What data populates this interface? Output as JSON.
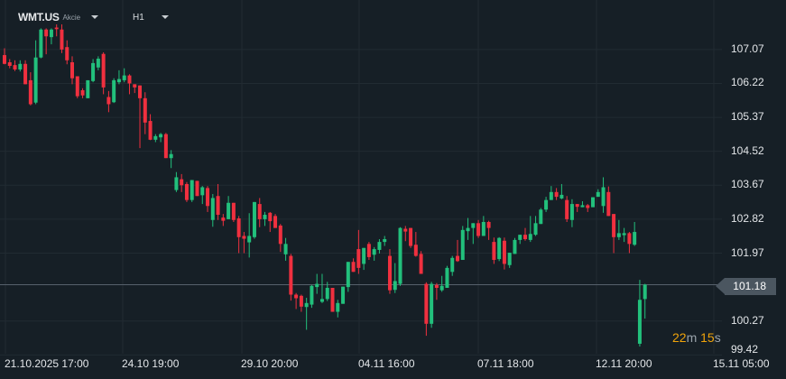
{
  "header": {
    "symbol": "WMT.US",
    "instrument_type": "Akcie",
    "timeframe": "H1"
  },
  "countdown": {
    "minutes": "22",
    "minutes_unit": "m",
    "seconds": "15",
    "seconds_unit": "s"
  },
  "colors": {
    "background": "#161f26",
    "grid": "#212b32",
    "up": "#22c07c",
    "down": "#f0303f",
    "last_price_box": "#4b5660",
    "countdown": "#f0a30a"
  },
  "chart_data": {
    "type": "candlestick",
    "ylim": [
      98.93,
      108.31
    ],
    "grid": true,
    "y_ticks": [
      "107.07",
      "106.22",
      "105.37",
      "104.52",
      "103.67",
      "102.82",
      "101.97",
      "100.27",
      "99.42"
    ],
    "x_tick_labels": [
      "21.10.2025 17:00",
      "24.10 19:00",
      "29.10 20:00",
      "04.11 16:00",
      "07.11 18:00",
      "12.11 20:00",
      "15.11 05:00"
    ],
    "last_price": "101.18",
    "ohlc": [
      [
        106.93,
        107.1,
        106.7,
        106.71
      ],
      [
        106.75,
        106.83,
        106.6,
        106.66
      ],
      [
        106.68,
        106.8,
        106.53,
        106.57
      ],
      [
        106.57,
        106.8,
        106.52,
        106.71
      ],
      [
        106.71,
        106.8,
        106.2,
        106.2
      ],
      [
        106.3,
        106.5,
        105.67,
        105.7
      ],
      [
        105.74,
        107.3,
        105.7,
        106.87
      ],
      [
        106.87,
        107.6,
        106.85,
        107.57
      ],
      [
        107.57,
        107.6,
        106.95,
        107.4
      ],
      [
        107.38,
        107.6,
        107.2,
        107.57
      ],
      [
        107.62,
        107.7,
        107.4,
        107.58
      ],
      [
        107.57,
        107.7,
        106.98,
        107.07
      ],
      [
        107.13,
        107.3,
        106.7,
        106.8
      ],
      [
        106.75,
        106.9,
        106.2,
        106.35
      ],
      [
        106.4,
        106.4,
        105.85,
        105.9
      ],
      [
        106.05,
        106.1,
        105.85,
        105.92
      ],
      [
        105.85,
        106.3,
        105.85,
        106.3
      ],
      [
        106.28,
        106.83,
        106.25,
        106.73
      ],
      [
        106.62,
        106.9,
        106.55,
        106.84
      ],
      [
        106.96,
        107.0,
        105.95,
        106.12
      ],
      [
        105.88,
        106.03,
        105.5,
        105.7
      ],
      [
        105.75,
        106.35,
        105.73,
        106.3
      ],
      [
        106.25,
        106.55,
        106.2,
        106.33
      ],
      [
        106.3,
        106.6,
        106.25,
        106.42
      ],
      [
        106.42,
        106.45,
        105.95,
        106.22
      ],
      [
        106.2,
        106.2,
        105.98,
        106.12
      ],
      [
        106.17,
        106.17,
        104.6,
        105.85
      ],
      [
        105.85,
        106.0,
        104.95,
        105.24
      ],
      [
        105.28,
        105.45,
        104.8,
        104.81
      ],
      [
        104.81,
        104.95,
        104.75,
        104.9
      ],
      [
        104.87,
        104.98,
        104.75,
        104.95
      ],
      [
        104.95,
        104.98,
        104.35,
        104.35
      ],
      [
        104.35,
        104.55,
        104.1,
        104.45
      ],
      [
        103.55,
        104.0,
        103.5,
        103.87
      ],
      [
        103.82,
        103.95,
        103.5,
        103.67
      ],
      [
        103.7,
        103.75,
        103.25,
        103.3
      ],
      [
        103.3,
        103.8,
        103.25,
        103.8
      ],
      [
        103.78,
        103.78,
        103.4,
        103.4
      ],
      [
        103.42,
        103.65,
        103.2,
        103.62
      ],
      [
        103.6,
        103.65,
        103.0,
        103.15
      ],
      [
        102.8,
        103.45,
        102.63,
        103.35
      ],
      [
        103.4,
        103.7,
        102.8,
        102.93
      ],
      [
        102.86,
        102.95,
        102.65,
        102.78
      ],
      [
        102.82,
        103.4,
        102.82,
        103.23
      ],
      [
        103.23,
        103.23,
        102.75,
        102.8
      ],
      [
        102.84,
        102.9,
        101.97,
        102.37
      ],
      [
        102.4,
        102.5,
        101.97,
        102.33
      ],
      [
        102.24,
        102.97,
        101.86,
        102.4
      ],
      [
        102.37,
        103.25,
        102.33,
        103.25
      ],
      [
        103.2,
        103.35,
        102.62,
        102.82
      ],
      [
        102.82,
        103.0,
        102.65,
        102.93
      ],
      [
        102.98,
        103.0,
        102.5,
        102.77
      ],
      [
        102.9,
        102.95,
        102.6,
        102.6
      ],
      [
        102.66,
        102.7,
        102.0,
        102.2
      ],
      [
        101.94,
        102.35,
        101.78,
        102.2
      ],
      [
        101.9,
        101.95,
        100.78,
        100.93
      ],
      [
        100.93,
        100.97,
        100.57,
        100.84
      ],
      [
        100.9,
        100.93,
        100.5,
        100.63
      ],
      [
        100.62,
        100.85,
        100.05,
        100.72
      ],
      [
        100.68,
        101.17,
        100.6,
        101.15
      ],
      [
        101.12,
        101.45,
        100.95,
        101.2
      ],
      [
        100.75,
        101.45,
        100.72,
        100.82
      ],
      [
        100.82,
        101.25,
        100.77,
        101.1
      ],
      [
        101.1,
        101.1,
        100.5,
        100.5
      ],
      [
        100.5,
        100.8,
        100.36,
        100.72
      ],
      [
        100.7,
        101.13,
        100.7,
        101.13
      ],
      [
        101.12,
        101.75,
        101.0,
        101.75
      ],
      [
        101.75,
        101.84,
        101.5,
        101.5
      ],
      [
        102.07,
        102.55,
        101.45,
        101.6
      ],
      [
        101.7,
        102.1,
        101.55,
        102.1
      ],
      [
        102.2,
        102.25,
        101.8,
        101.87
      ],
      [
        101.93,
        102.12,
        101.78,
        102.07
      ],
      [
        102.05,
        102.32,
        101.96,
        102.25
      ],
      [
        102.25,
        102.4,
        102.15,
        102.32
      ],
      [
        101.9,
        102.07,
        100.95,
        101.04
      ],
      [
        101.05,
        101.72,
        100.97,
        101.27
      ],
      [
        101.2,
        102.62,
        101.15,
        102.6
      ],
      [
        102.58,
        102.65,
        102.27,
        102.51
      ],
      [
        102.6,
        102.6,
        102.1,
        102.15
      ],
      [
        102.18,
        102.5,
        101.88,
        101.9
      ],
      [
        101.95,
        102.02,
        101.45,
        101.45
      ],
      [
        101.2,
        101.24,
        99.9,
        100.2
      ],
      [
        100.2,
        101.25,
        100.1,
        101.2
      ],
      [
        101.17,
        101.22,
        100.8,
        101.1
      ],
      [
        101.04,
        101.4,
        101.0,
        101.15
      ],
      [
        101.1,
        101.65,
        101.1,
        101.6
      ],
      [
        101.5,
        101.9,
        101.4,
        101.85
      ],
      [
        101.9,
        102.3,
        101.75,
        101.77
      ],
      [
        101.8,
        102.65,
        101.8,
        102.55
      ],
      [
        102.52,
        102.85,
        102.3,
        102.6
      ],
      [
        102.6,
        102.72,
        102.2,
        102.72
      ],
      [
        102.72,
        102.8,
        102.35,
        102.4
      ],
      [
        102.4,
        102.9,
        102.4,
        102.75
      ],
      [
        102.75,
        102.78,
        102.3,
        102.6
      ],
      [
        102.25,
        102.36,
        101.7,
        101.8
      ],
      [
        101.82,
        102.37,
        101.77,
        102.35
      ],
      [
        102.28,
        102.36,
        101.56,
        101.7
      ],
      [
        101.67,
        101.98,
        101.6,
        101.98
      ],
      [
        101.95,
        102.35,
        101.95,
        102.3
      ],
      [
        102.3,
        102.43,
        102.2,
        102.43
      ],
      [
        102.43,
        102.6,
        102.28,
        102.32
      ],
      [
        102.3,
        102.9,
        102.25,
        102.45
      ],
      [
        102.43,
        102.9,
        102.4,
        102.72
      ],
      [
        102.7,
        103.1,
        102.7,
        103.06
      ],
      [
        103.06,
        103.38,
        103.0,
        103.3
      ],
      [
        103.3,
        103.65,
        103.3,
        103.5
      ],
      [
        103.5,
        103.6,
        103.3,
        103.38
      ],
      [
        103.34,
        103.7,
        103.32,
        103.43
      ],
      [
        103.3,
        103.4,
        102.75,
        102.82
      ],
      [
        102.8,
        103.32,
        102.62,
        103.2
      ],
      [
        103.2,
        103.2,
        103.0,
        103.13
      ],
      [
        103.12,
        103.27,
        103.12,
        103.17
      ],
      [
        103.17,
        103.2,
        103.0,
        103.1
      ],
      [
        103.12,
        103.37,
        103.12,
        103.37
      ],
      [
        103.38,
        103.57,
        103.38,
        103.5
      ],
      [
        103.15,
        103.87,
        102.98,
        103.62
      ],
      [
        103.5,
        103.64,
        102.9,
        102.9
      ],
      [
        102.95,
        102.95,
        101.97,
        102.37
      ],
      [
        102.37,
        102.8,
        102.3,
        102.47
      ],
      [
        102.42,
        102.6,
        102.25,
        102.47
      ],
      [
        102.47,
        102.5,
        101.97,
        102.2
      ],
      [
        102.18,
        102.75,
        102.15,
        102.5
      ],
      [
        99.7,
        101.3,
        99.63,
        100.8
      ],
      [
        100.82,
        101.2,
        100.33,
        101.18
      ]
    ]
  }
}
